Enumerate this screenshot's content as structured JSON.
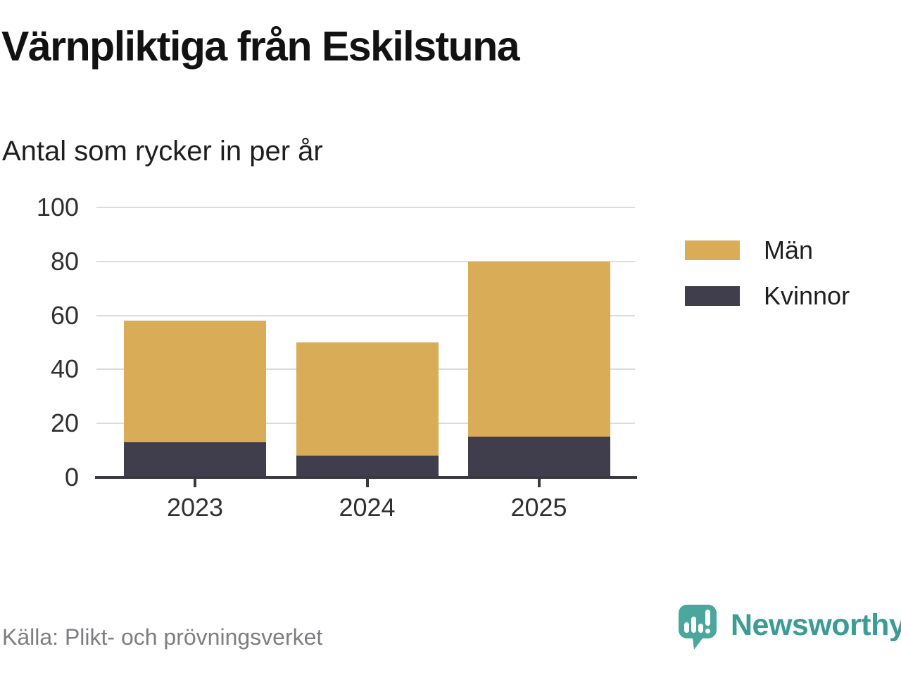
{
  "footer": {
    "source": "Källa: Plikt- och prövningsverket",
    "brand": "Newsworthy"
  },
  "colors": {
    "man_gold": "#D9AC58",
    "kvinnor_dark": "#403E4C",
    "axis": "#393843",
    "grid": "#DCDCDC",
    "tick_label": "#303030",
    "title_text": "#121212",
    "source_text": "#7E7E82",
    "brand_icon_teal": "#4BA79D",
    "brand_text_teal": "#3A9C94"
  },
  "chart_data": {
    "type": "bar",
    "stacked": true,
    "title": "Värnpliktiga från Eskilstuna",
    "subtitle": "Antal som rycker in per år",
    "categories": [
      "2023",
      "2024",
      "2025"
    ],
    "series": [
      {
        "name": "Män",
        "color": "#D9AC58",
        "values": [
          45,
          42,
          65
        ]
      },
      {
        "name": "Kvinnor",
        "color": "#403E4C",
        "values": [
          13,
          8,
          15
        ]
      }
    ],
    "stack_bottom_series": "Kvinnor",
    "totals": [
      58,
      50,
      80
    ],
    "y_ticks": [
      0,
      20,
      40,
      60,
      80,
      100
    ],
    "ylim": [
      0,
      100
    ],
    "xlabel": "",
    "ylabel": "",
    "grid": true,
    "legend_position": "right",
    "legend_order": [
      "Män",
      "Kvinnor"
    ]
  }
}
